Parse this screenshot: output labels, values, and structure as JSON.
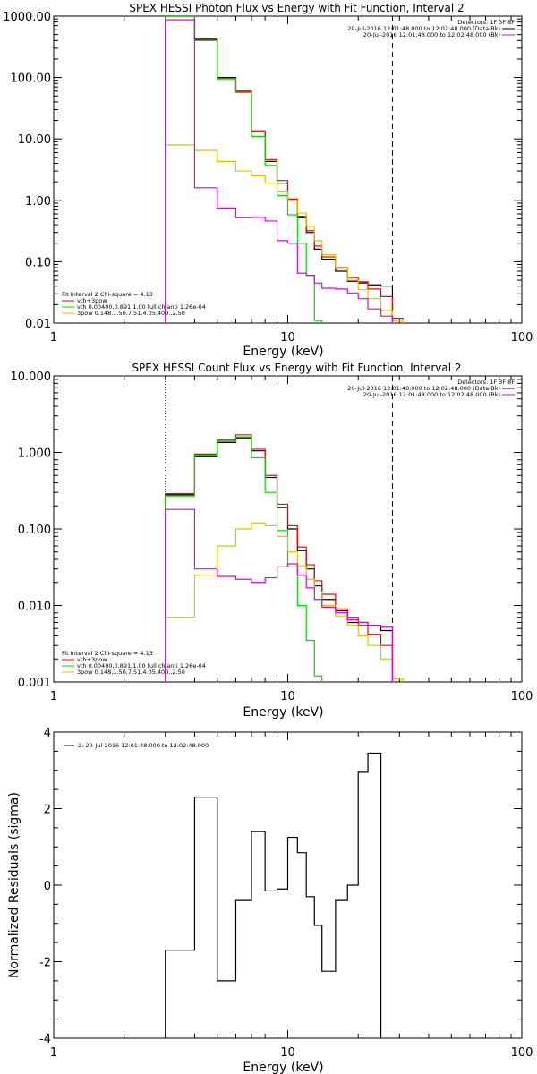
{
  "colors": {
    "black": "#000000",
    "red": "#ff0000",
    "green": "#00dd00",
    "magenta": "#e000e0",
    "yellow": "#e0c000"
  },
  "chart_data": [
    {
      "type": "line",
      "title": "SPEX HESSI Photon Flux vs Energy with Fit Function, Interval 2",
      "xlabel": "Energy (keV)",
      "ylabel": "",
      "xscale": "log",
      "yscale": "log",
      "xlim": [
        1,
        100
      ],
      "ylim": [
        0.01,
        1000
      ],
      "xticks": [
        1,
        10,
        100
      ],
      "xtick_labels": [
        "1",
        "10",
        "100"
      ],
      "yticks": [
        0.01,
        0.1,
        1,
        10,
        100,
        1000
      ],
      "ytick_labels": [
        "0.01",
        "0.10",
        "1.00",
        "10.00",
        "100.00",
        "1000.00"
      ],
      "vlines": [
        {
          "x": 3.0,
          "style": "dotted"
        },
        {
          "x": 28.0,
          "style": "dashed"
        }
      ],
      "info_lines": [
        "Detectors: 1F 3F 8F",
        "20-Jul-2016 12:01:48.000 to 12:02:48.000 (Data-Bk)",
        "20-Jul-2016 12:01:48.000 to 12:02:48.000 (Bk)"
      ],
      "fit_lines": [
        "Fit Interval 2   Chi-square = 4.13",
        "vth+3pow",
        "vth 0.00400,0.891,1.00   full chianti 1.26e-04",
        "3pow 0.148,1.50,7.51,4.05,400.,2.50"
      ],
      "bin_edges": [
        3,
        4,
        5,
        6,
        7,
        8,
        9,
        10,
        11,
        12,
        13,
        14,
        16,
        18,
        20,
        22,
        25,
        28,
        31
      ],
      "series": [
        {
          "name": "20-Jul-2016 12:01:48.000 to 12:02:48.000 (Data-Bk)",
          "color_key": "black",
          "values": [
            1000,
            420,
            100,
            60,
            13,
            4.3,
            1.9,
            1.0,
            0.52,
            0.3,
            0.16,
            0.11,
            0.07,
            0.048,
            0.045,
            0.042,
            0.04
          ]
        },
        {
          "name": "vth+3pow",
          "color_key": "red",
          "values": [
            1000,
            400,
            97,
            59,
            13.5,
            4.6,
            2.1,
            1.05,
            0.55,
            0.32,
            0.18,
            0.12,
            0.08,
            0.055,
            0.047,
            0.036,
            0.027,
            0.012
          ]
        },
        {
          "name": "vth",
          "color_key": "green",
          "values": [
            1000,
            400,
            95,
            57,
            11,
            3.7,
            1.2,
            0.58,
            0.2,
            0.06,
            0.011
          ]
        },
        {
          "name": "3pow",
          "color_key": "yellow",
          "values": [
            8,
            6.5,
            4.3,
            3.0,
            2.5,
            1.9,
            1.4,
            1.0,
            0.62,
            0.38,
            0.22,
            0.13,
            0.078,
            0.05,
            0.035,
            0.025,
            0.016,
            0.011
          ]
        },
        {
          "name": "20-Jul-2016 12:01:48.000 to 12:02:48.000 (Bk)",
          "color_key": "magenta",
          "values": [
            870,
            1.6,
            0.75,
            0.52,
            0.53,
            0.46,
            0.22,
            0.2,
            0.065,
            0.06,
            0.045,
            0.037,
            0.036,
            0.031,
            0.025,
            0.017,
            0.013
          ]
        }
      ]
    },
    {
      "type": "line",
      "title": "SPEX HESSI Count Flux vs Energy with Fit Function, Interval 2",
      "xlabel": "Energy (keV)",
      "ylabel": "",
      "xscale": "log",
      "yscale": "log",
      "xlim": [
        1,
        100
      ],
      "ylim": [
        0.001,
        10
      ],
      "xticks": [
        1,
        10,
        100
      ],
      "xtick_labels": [
        "1",
        "10",
        "100"
      ],
      "yticks": [
        0.001,
        0.01,
        0.1,
        1,
        10
      ],
      "ytick_labels": [
        "0.001",
        "0.010",
        "0.100",
        "1.000",
        "10.000"
      ],
      "vlines": [
        {
          "x": 3.0,
          "style": "dotted"
        },
        {
          "x": 28.0,
          "style": "dashed"
        }
      ],
      "info_lines": [
        "Detectors: 1F 3F 8F",
        "20-Jul-2016 12:01:48.000 to 12:02:48.000 (Data-Bk)",
        "20-Jul-2016 12:01:48.000 to 12:02:48.000 (Bk)"
      ],
      "fit_lines": [
        "Fit Interval 2   Chi-square = 4.13",
        "vth+3pow",
        "vth 0.00400,0.891,1.00   full chianti 1.26e-04",
        "3pow 0.148,1.50,7.51,4.05,400.,2.50"
      ],
      "bin_edges": [
        3,
        4,
        5,
        6,
        7,
        8,
        9,
        10,
        11,
        12,
        13,
        14,
        16,
        18,
        20,
        22,
        25,
        28,
        31
      ],
      "series": [
        {
          "name": "20-Jul-2016 12:01:48.000 to 12:02:48.000 (Data-Bk)",
          "color_key": "black",
          "values": [
            0.28,
            0.88,
            1.35,
            1.55,
            1.05,
            0.47,
            0.19,
            0.1,
            0.052,
            0.03,
            0.018,
            0.012,
            0.0085,
            0.006,
            0.006,
            0.0055,
            0.0047
          ]
        },
        {
          "name": "vth+3pow",
          "color_key": "red",
          "values": [
            0.29,
            0.95,
            1.45,
            1.7,
            1.1,
            0.5,
            0.21,
            0.11,
            0.058,
            0.034,
            0.021,
            0.014,
            0.009,
            0.007,
            0.0055,
            0.0042,
            0.003,
            0.0011
          ]
        },
        {
          "name": "vth",
          "color_key": "green",
          "values": [
            0.27,
            0.92,
            1.4,
            1.6,
            0.85,
            0.3,
            0.095,
            0.032,
            0.01,
            0.0035,
            0.0012
          ]
        },
        {
          "name": "3pow",
          "color_key": "yellow",
          "values": [
            0.007,
            0.025,
            0.06,
            0.1,
            0.12,
            0.11,
            0.08,
            0.05,
            0.033,
            0.022,
            0.015,
            0.01,
            0.0073,
            0.0055,
            0.004,
            0.003,
            0.002,
            0.0011
          ]
        },
        {
          "name": "20-Jul-2016 12:01:48.000 to 12:02:48.000 (Bk)",
          "color_key": "magenta",
          "values": [
            0.18,
            0.03,
            0.024,
            0.022,
            0.02,
            0.023,
            0.032,
            0.035,
            0.025,
            0.017,
            0.012,
            0.0095,
            0.008,
            0.0065,
            0.006,
            0.0055,
            0.0052
          ]
        }
      ]
    },
    {
      "type": "line",
      "title": "",
      "xlabel": "Energy (keV)",
      "ylabel": "Normalized Residuals (sigma)",
      "xscale": "log",
      "yscale": "linear",
      "xlim": [
        1,
        100
      ],
      "ylim": [
        -4,
        4
      ],
      "xticks": [
        1,
        10,
        100
      ],
      "xtick_labels": [
        "1",
        "10",
        "100"
      ],
      "yticks": [
        -4,
        -2,
        0,
        2,
        4
      ],
      "ytick_labels": [
        "-4",
        "-2",
        "0",
        "2",
        "4"
      ],
      "legend_label": "2: 20-Jul-2016 12:01:48.000 to 12:02:48.000",
      "bin_edges": [
        3,
        4,
        5,
        6,
        7,
        8,
        9,
        10,
        11,
        12,
        13,
        14,
        16,
        18,
        20,
        22,
        25,
        28
      ],
      "series": [
        {
          "name": "2: 20-Jul-2016 12:01:48.000 to 12:02:48.000",
          "color_key": "black",
          "values": [
            -1.7,
            2.3,
            -2.5,
            -0.4,
            1.4,
            -0.15,
            -0.1,
            1.25,
            0.85,
            -0.3,
            -1.05,
            -2.25,
            -0.4,
            0.0,
            2.95,
            3.45
          ]
        }
      ]
    }
  ]
}
